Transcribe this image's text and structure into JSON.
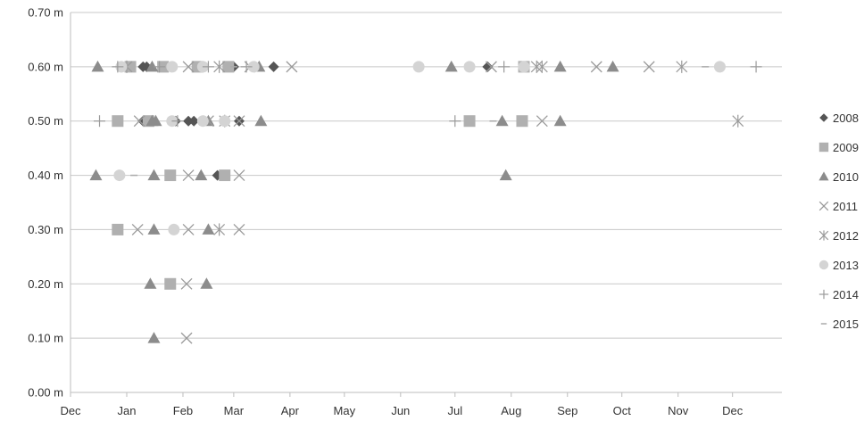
{
  "chart_data": {
    "type": "scatter",
    "x_axis": {
      "type": "month",
      "tick_labels": [
        "Dec",
        "Jan",
        "Feb",
        "Mar",
        "Apr",
        "May",
        "Jun",
        "Jul",
        "Aug",
        "Sep",
        "Oct",
        "Nov",
        "Dec"
      ],
      "range": [
        "Dec 1",
        "Dec 31 (following)"
      ]
    },
    "y_axis": {
      "unit": "m",
      "ylim": [
        0,
        0.7
      ],
      "tick_values": [
        0,
        0.1,
        0.2,
        0.3,
        0.4,
        0.5,
        0.6,
        0.7
      ],
      "tick_labels": [
        "0.00 m",
        "0.10 m",
        "0.20 m",
        "0.30 m",
        "0.40 m",
        "0.50 m",
        "0.60 m",
        "0.70 m"
      ]
    },
    "grid": "horizontal",
    "legend_position": "right",
    "colors": {
      "2008": "#555555",
      "2009": "#b0b0b0",
      "2010": "#8c8c8c",
      "2011": "#9a9a9a",
      "2012": "#9a9a9a",
      "2013": "#d4d4d4",
      "2014": "#9a9a9a",
      "2015": "#aaaaaa",
      "grid": "#c8c8c8",
      "axis": "#bdbdbd"
    },
    "series": [
      {
        "name": "2008",
        "marker": "diamond",
        "points": [
          {
            "x": "Jan 10",
            "y": 0.6
          },
          {
            "x": "Jan 12",
            "y": 0.6
          },
          {
            "x": "Mar 1",
            "y": 0.6
          },
          {
            "x": "Mar 23",
            "y": 0.6
          },
          {
            "x": "Jul 19",
            "y": 0.6
          },
          {
            "x": "Jan 10",
            "y": 0.5
          },
          {
            "x": "Jan 28",
            "y": 0.5
          },
          {
            "x": "Feb 4",
            "y": 0.5
          },
          {
            "x": "Feb 7",
            "y": 0.5
          },
          {
            "x": "Mar 4",
            "y": 0.5
          },
          {
            "x": "Feb 20",
            "y": 0.4
          }
        ]
      },
      {
        "name": "2009",
        "marker": "square",
        "points": [
          {
            "x": "Jan 3",
            "y": 0.6
          },
          {
            "x": "Jan 21",
            "y": 0.6
          },
          {
            "x": "Feb 9",
            "y": 0.6
          },
          {
            "x": "Feb 26",
            "y": 0.6
          },
          {
            "x": "Aug 8",
            "y": 0.6
          },
          {
            "x": "Dec 27",
            "y": 0.5
          },
          {
            "x": "Jan 13",
            "y": 0.5
          },
          {
            "x": "Jul 9",
            "y": 0.5
          },
          {
            "x": "Aug 7",
            "y": 0.5
          },
          {
            "x": "Jan 25",
            "y": 0.4
          },
          {
            "x": "Feb 24",
            "y": 0.4
          },
          {
            "x": "Dec 27",
            "y": 0.3
          },
          {
            "x": "Jan 25",
            "y": 0.2
          }
        ]
      },
      {
        "name": "2010",
        "marker": "triangle",
        "points": [
          {
            "x": "Dec 16",
            "y": 0.6
          },
          {
            "x": "Jan 15",
            "y": 0.6
          },
          {
            "x": "Mar 15",
            "y": 0.6
          },
          {
            "x": "Jun 29",
            "y": 0.6
          },
          {
            "x": "Aug 28",
            "y": 0.6
          },
          {
            "x": "Sep 26",
            "y": 0.6
          },
          {
            "x": "Jan 15",
            "y": 0.5
          },
          {
            "x": "Jan 17",
            "y": 0.5
          },
          {
            "x": "Feb 15",
            "y": 0.5
          },
          {
            "x": "Mar 16",
            "y": 0.5
          },
          {
            "x": "Jul 27",
            "y": 0.5
          },
          {
            "x": "Aug 28",
            "y": 0.5
          },
          {
            "x": "Dec 15",
            "y": 0.4
          },
          {
            "x": "Jan 16",
            "y": 0.4
          },
          {
            "x": "Feb 11",
            "y": 0.4
          },
          {
            "x": "Jul 29",
            "y": 0.4
          },
          {
            "x": "Jan 16",
            "y": 0.3
          },
          {
            "x": "Feb 15",
            "y": 0.3
          },
          {
            "x": "Jan 14",
            "y": 0.2
          },
          {
            "x": "Feb 14",
            "y": 0.2
          },
          {
            "x": "Jan 16",
            "y": 0.1
          }
        ]
      },
      {
        "name": "2011",
        "marker": "x",
        "points": [
          {
            "x": "Feb 4",
            "y": 0.6
          },
          {
            "x": "Mar 10",
            "y": 0.6
          },
          {
            "x": "Apr 2",
            "y": 0.6
          },
          {
            "x": "Jul 21",
            "y": 0.6
          },
          {
            "x": "Sep 17",
            "y": 0.6
          },
          {
            "x": "Oct 16",
            "y": 0.6
          },
          {
            "x": "Jan 8",
            "y": 0.5
          },
          {
            "x": "Feb 15",
            "y": 0.5
          },
          {
            "x": "Mar 4",
            "y": 0.5
          },
          {
            "x": "Aug 18",
            "y": 0.5
          },
          {
            "x": "Feb 4",
            "y": 0.4
          },
          {
            "x": "Mar 4",
            "y": 0.4
          },
          {
            "x": "Jan 7",
            "y": 0.3
          },
          {
            "x": "Feb 4",
            "y": 0.3
          },
          {
            "x": "Mar 4",
            "y": 0.3
          },
          {
            "x": "Feb 3",
            "y": 0.2
          },
          {
            "x": "Feb 3",
            "y": 0.1
          }
        ]
      },
      {
        "name": "2012",
        "marker": "asterisk",
        "points": [
          {
            "x": "Jan 1",
            "y": 0.6
          },
          {
            "x": "Feb 21",
            "y": 0.6
          },
          {
            "x": "Aug 15",
            "y": 0.6
          },
          {
            "x": "Aug 18",
            "y": 0.6
          },
          {
            "x": "Nov 3",
            "y": 0.6
          },
          {
            "x": "Feb 24",
            "y": 0.5
          },
          {
            "x": "Dec 4",
            "y": 0.5
          },
          {
            "x": "Feb 21",
            "y": 0.3
          }
        ]
      },
      {
        "name": "2013",
        "marker": "circle",
        "points": [
          {
            "x": "Dec 29",
            "y": 0.6
          },
          {
            "x": "Jan 26",
            "y": 0.6
          },
          {
            "x": "Feb 12",
            "y": 0.6
          },
          {
            "x": "Mar 12",
            "y": 0.6
          },
          {
            "x": "Jun 11",
            "y": 0.6
          },
          {
            "x": "Jul 9",
            "y": 0.6
          },
          {
            "x": "Aug 8",
            "y": 0.6
          },
          {
            "x": "Nov 24",
            "y": 0.6
          },
          {
            "x": "Jan 26",
            "y": 0.5
          },
          {
            "x": "Feb 12",
            "y": 0.5
          },
          {
            "x": "Feb 24",
            "y": 0.5
          },
          {
            "x": "Dec 28",
            "y": 0.4
          },
          {
            "x": "Jan 27",
            "y": 0.3
          }
        ]
      },
      {
        "name": "2014",
        "marker": "plus",
        "points": [
          {
            "x": "Dec 27",
            "y": 0.6
          },
          {
            "x": "Jan 19",
            "y": 0.6
          },
          {
            "x": "Feb 15",
            "y": 0.6
          },
          {
            "x": "Mar 8",
            "y": 0.6
          },
          {
            "x": "Jul 28",
            "y": 0.6
          },
          {
            "x": "Dec 14",
            "y": 0.6
          },
          {
            "x": "Dec 17",
            "y": 0.5
          },
          {
            "x": "Jan 29",
            "y": 0.5
          },
          {
            "x": "Jul 1",
            "y": 0.5
          }
        ]
      },
      {
        "name": "2015",
        "marker": "dash",
        "points": [
          {
            "x": "Mar 1",
            "y": 0.6
          },
          {
            "x": "Nov 16",
            "y": 0.6
          },
          {
            "x": "Jul 22",
            "y": 0.5
          },
          {
            "x": "Jan 5",
            "y": 0.4
          }
        ]
      }
    ]
  }
}
